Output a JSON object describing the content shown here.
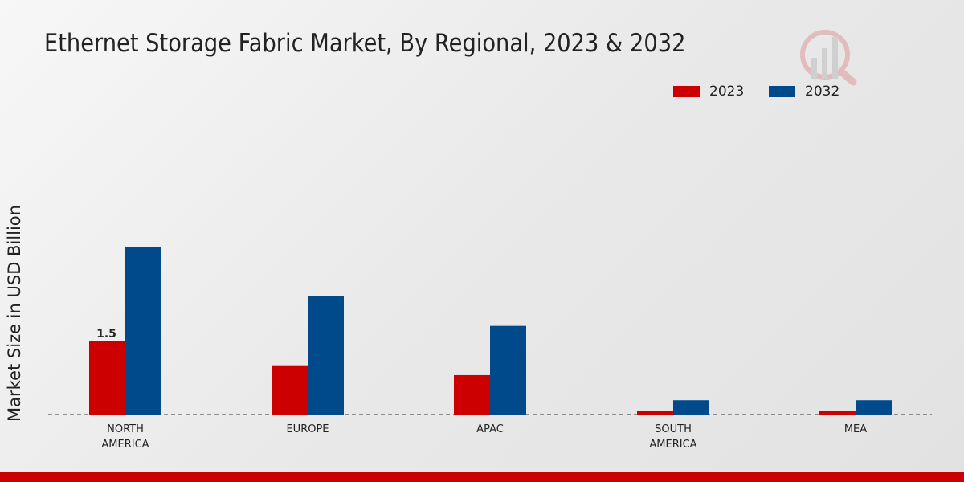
{
  "chart_data": {
    "type": "bar",
    "title": "Ethernet Storage Fabric Market, By Regional, 2023 & 2032",
    "ylabel": "Market Size in USD Billion",
    "xlabel": "",
    "categories": [
      [
        "NORTH",
        "AMERICA"
      ],
      [
        "EUROPE"
      ],
      [
        "APAC"
      ],
      [
        "SOUTH",
        "AMERICA"
      ],
      [
        "MEA"
      ]
    ],
    "series": [
      {
        "name": "2023",
        "color": "#cc0000",
        "values": [
          1.5,
          1.0,
          0.8,
          0.08,
          0.08
        ]
      },
      {
        "name": "2032",
        "color": "#004a8c",
        "values": [
          3.4,
          2.4,
          1.8,
          0.29,
          0.29
        ]
      }
    ],
    "data_labels": [
      {
        "series": 0,
        "index": 0,
        "text": "1.5"
      }
    ],
    "ylim": [
      0,
      4.5
    ],
    "legend": "top-right",
    "grid": false
  }
}
